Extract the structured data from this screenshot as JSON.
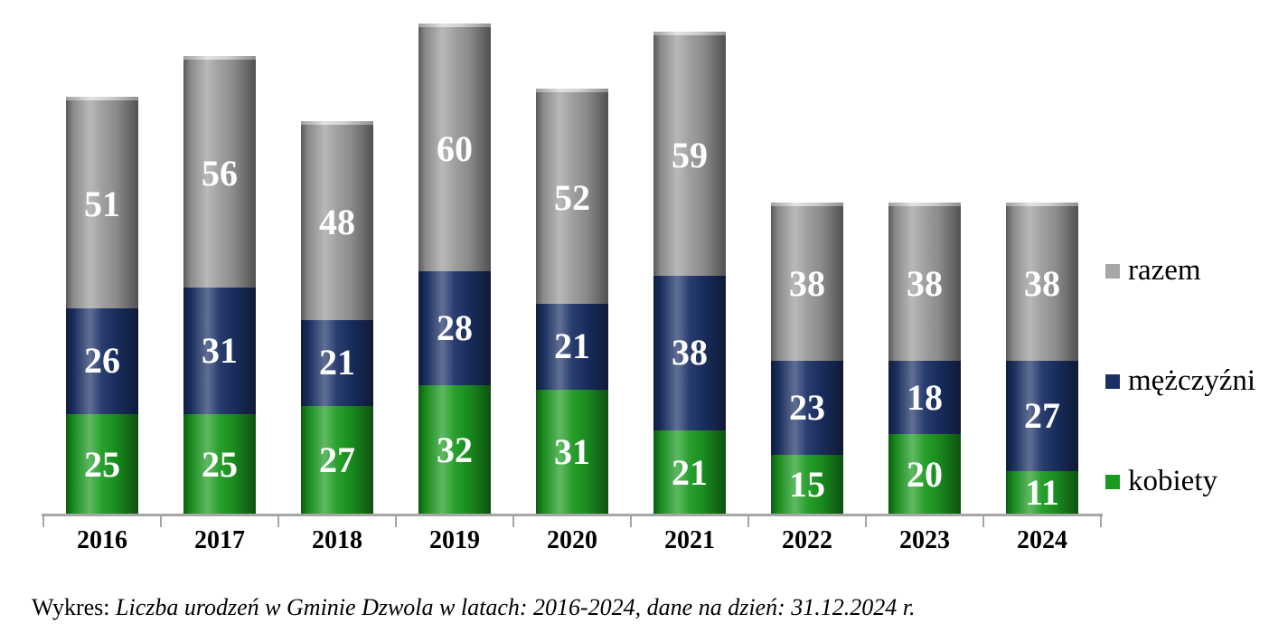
{
  "chart_data": {
    "type": "bar",
    "stacked": true,
    "title": "",
    "categories": [
      "2016",
      "2017",
      "2018",
      "2019",
      "2020",
      "2021",
      "2022",
      "2023",
      "2024"
    ],
    "series": [
      {
        "name": "kobiety",
        "color": "#1b9a20",
        "values": [
          25,
          25,
          27,
          32,
          31,
          21,
          15,
          20,
          11
        ]
      },
      {
        "name": "mężczyźni",
        "color": "#1b3166",
        "values": [
          26,
          31,
          21,
          28,
          21,
          38,
          23,
          18,
          27
        ]
      },
      {
        "name": "razem",
        "color": "#9a9a9a",
        "values": [
          51,
          56,
          48,
          60,
          52,
          59,
          38,
          38,
          38
        ]
      }
    ],
    "legend": {
      "position": "right",
      "entries": [
        {
          "label": "razem",
          "color": "#a6a6a6"
        },
        {
          "label": "mężczyźni",
          "color": "#1b3166"
        },
        {
          "label": "kobiety",
          "color": "#1b9a20"
        }
      ]
    },
    "xlabel": "",
    "ylabel": "",
    "ylim": [
      0,
      124
    ],
    "grid": false,
    "bar_style": "cylinder",
    "value_labels": "white bold numbers inside each segment",
    "note": "Stacked column chart; 'razem' (total) is drawn as the top stacked segment above kobiety and mężczyźni."
  },
  "caption": {
    "prefix": "Wykres: ",
    "italic_text": "Liczba urodzeń w Gminie Dzwola w latach: 2016-2024, dane na dzień: 31.12.2024 r."
  }
}
